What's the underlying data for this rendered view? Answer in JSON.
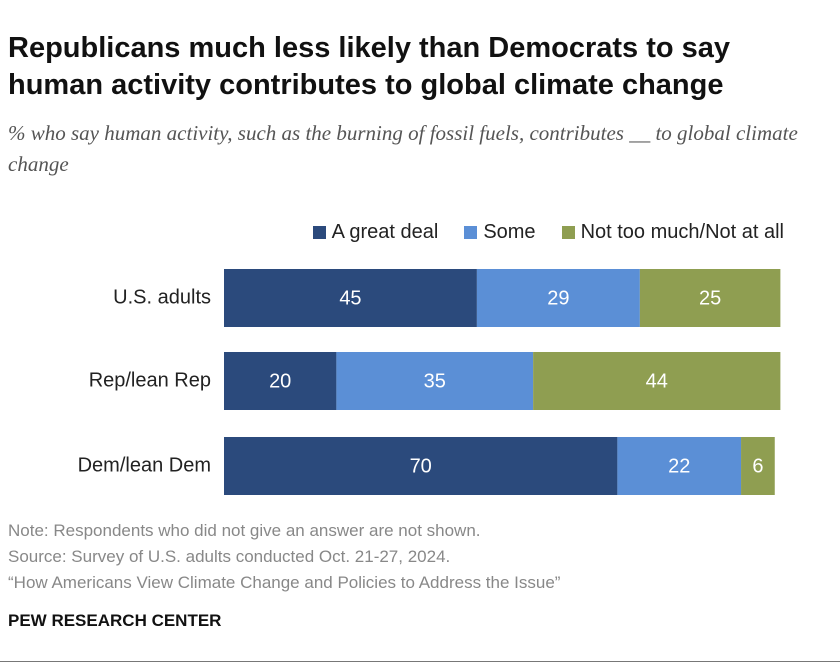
{
  "chart_data": {
    "type": "stacked-bar-horizontal",
    "title": "Republicans much less likely than Democrats to say human activity contributes to global climate change",
    "subtitle": "% who say human activity, such as the burning of fossil fuels, contributes __ to global climate change",
    "categories": [
      "U.S. adults",
      "Rep/lean Rep",
      "Dem/lean Dem"
    ],
    "series": [
      {
        "name": "A great deal",
        "color": "#2b4a7c",
        "values": [
          45,
          20,
          70
        ]
      },
      {
        "name": "Some",
        "color": "#5b8fd6",
        "values": [
          29,
          35,
          22
        ]
      },
      {
        "name": "Not too much/Not at all",
        "color": "#8f9e51",
        "values": [
          25,
          44,
          6
        ]
      }
    ],
    "notes": [
      "Note: Respondents who did not give an answer are not shown.",
      "Source: Survey of U.S. adults conducted Oct. 21-27, 2024.",
      "“How Americans View Climate Change and Policies to Address the Issue”"
    ],
    "source_org": "PEW RESEARCH CENTER"
  }
}
